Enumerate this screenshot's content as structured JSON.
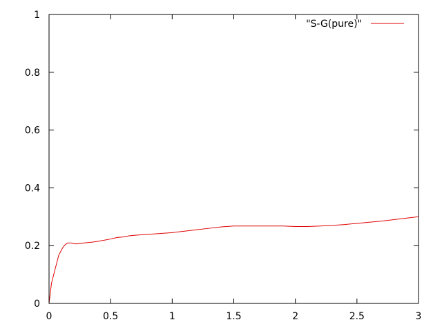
{
  "chart_data": {
    "type": "line",
    "title": "",
    "xlabel": "",
    "ylabel": "",
    "xlim": [
      0,
      3
    ],
    "ylim": [
      0,
      1
    ],
    "xticks": [
      0,
      0.5,
      1,
      1.5,
      2,
      2.5,
      3
    ],
    "xtick_labels": [
      "0",
      "0.5",
      "1",
      "1.5",
      "2",
      "2.5",
      "3"
    ],
    "yticks": [
      0,
      0.2,
      0.4,
      0.6,
      0.8,
      1
    ],
    "ytick_labels": [
      "0",
      "0.2",
      "0.4",
      "0.6",
      "0.8",
      "1"
    ],
    "grid": false,
    "legend_position": "top-right",
    "series": [
      {
        "name": "\"S-G(pure)\"",
        "color": "#e00000",
        "x": [
          0,
          0.02,
          0.05,
          0.08,
          0.11,
          0.13,
          0.15,
          0.18,
          0.22,
          0.26,
          0.3,
          0.35,
          0.4,
          0.45,
          0.5,
          0.55,
          0.6,
          0.65,
          0.7,
          0.8,
          0.9,
          1.0,
          1.1,
          1.2,
          1.3,
          1.4,
          1.5,
          1.6,
          1.7,
          1.8,
          1.9,
          2.0,
          2.1,
          2.2,
          2.3,
          2.4,
          2.5,
          2.6,
          2.7,
          2.8,
          2.9,
          3.0
        ],
        "y": [
          0.0,
          0.07,
          0.12,
          0.168,
          0.192,
          0.203,
          0.209,
          0.209,
          0.206,
          0.208,
          0.21,
          0.212,
          0.215,
          0.219,
          0.223,
          0.228,
          0.23,
          0.234,
          0.236,
          0.239,
          0.242,
          0.245,
          0.25,
          0.255,
          0.26,
          0.265,
          0.268,
          0.268,
          0.268,
          0.268,
          0.268,
          0.266,
          0.266,
          0.268,
          0.27,
          0.273,
          0.277,
          0.281,
          0.285,
          0.29,
          0.295,
          0.3
        ]
      }
    ]
  }
}
